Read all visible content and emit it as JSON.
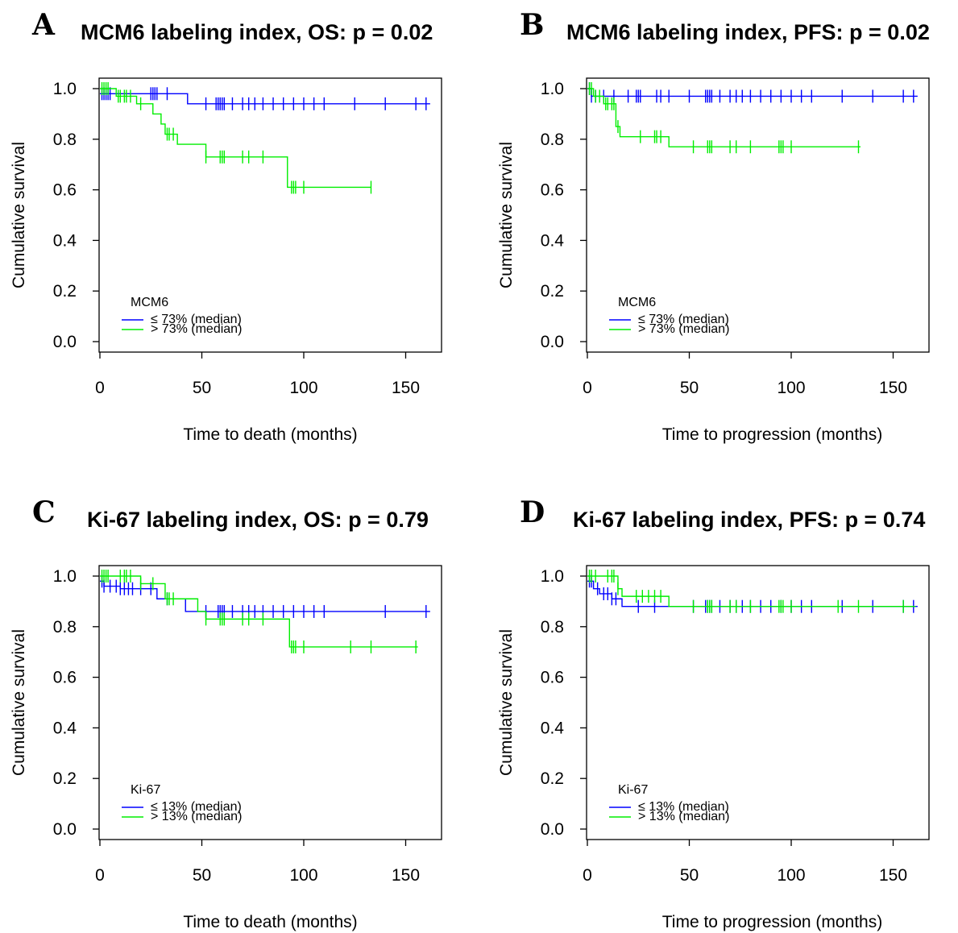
{
  "chart_data": [
    {
      "type": "line",
      "panel_letter": "A",
      "title": "MCM6 labeling index, OS: p = 0.02",
      "xlabel": "Time to death (months)",
      "ylabel": "Cumulative survival",
      "xlim": [
        0,
        165
      ],
      "ylim": [
        0,
        1.0
      ],
      "xticks": [
        "0",
        "50",
        "100",
        "150"
      ],
      "yticks": [
        "0.0",
        "0.2",
        "0.4",
        "0.6",
        "0.8",
        "1.0"
      ],
      "legend": {
        "title": "MCM6",
        "position": "bottom-left",
        "entries": [
          "≤ 73% (median)",
          "> 73% (median)"
        ]
      },
      "series": [
        {
          "name": "≤ 73% (median)",
          "color": "#0000ff",
          "steps": [
            [
              0,
              0.98
            ],
            [
              43,
              0.94
            ],
            [
              162,
              0.94
            ]
          ],
          "censor": [
            1,
            2,
            3,
            4,
            5,
            25,
            26,
            27,
            28,
            33,
            52,
            57,
            58,
            59,
            60,
            61,
            65,
            70,
            73,
            76,
            80,
            85,
            90,
            95,
            100,
            105,
            110,
            125,
            140,
            155,
            160
          ]
        },
        {
          "name": "> 73% (median)",
          "color": "#00ee00",
          "steps": [
            [
              0,
              1.0
            ],
            [
              8,
              0.97
            ],
            [
              18,
              0.94
            ],
            [
              26,
              0.9
            ],
            [
              30,
              0.86
            ],
            [
              32,
              0.82
            ],
            [
              38,
              0.78
            ],
            [
              52,
              0.73
            ],
            [
              92,
              0.61
            ],
            [
              133,
              0.61
            ]
          ],
          "censor": [
            1,
            2,
            3,
            4,
            9,
            10,
            12,
            13,
            15,
            20,
            33,
            34,
            36,
            52,
            59,
            60,
            61,
            70,
            73,
            80,
            94,
            95,
            96,
            100,
            133
          ]
        }
      ]
    },
    {
      "type": "line",
      "panel_letter": "B",
      "title": "MCM6 labeling index, PFS: p = 0.02",
      "xlabel": "Time to progression (months)",
      "ylabel": "Cumulative survival",
      "xlim": [
        0,
        165
      ],
      "ylim": [
        0,
        1.0
      ],
      "xticks": [
        "0",
        "50",
        "100",
        "150"
      ],
      "yticks": [
        "0.0",
        "0.2",
        "0.4",
        "0.6",
        "0.8",
        "1.0"
      ],
      "legend": {
        "title": "MCM6",
        "position": "bottom-left",
        "entries": [
          "≤ 73% (median)",
          "> 73% (median)"
        ]
      },
      "series": [
        {
          "name": "≤ 73% (median)",
          "color": "#0000ff",
          "steps": [
            [
              0,
              1.0
            ],
            [
              2,
              0.97
            ],
            [
              162,
              0.97
            ]
          ],
          "censor": [
            1,
            2,
            4,
            8,
            13,
            20,
            24,
            25,
            26,
            34,
            36,
            40,
            50,
            58,
            59,
            60,
            61,
            65,
            70,
            73,
            76,
            80,
            85,
            90,
            95,
            100,
            105,
            110,
            125,
            140,
            155,
            160
          ]
        },
        {
          "name": "> 73% (median)",
          "color": "#00ee00",
          "steps": [
            [
              0,
              1.0
            ],
            [
              3,
              0.97
            ],
            [
              8,
              0.94
            ],
            [
              14,
              0.85
            ],
            [
              16,
              0.81
            ],
            [
              40,
              0.77
            ],
            [
              134,
              0.77
            ]
          ],
          "censor": [
            1,
            2,
            4,
            6,
            9,
            10,
            12,
            13,
            15,
            26,
            33,
            34,
            36,
            52,
            59,
            60,
            61,
            70,
            73,
            80,
            94,
            95,
            96,
            100,
            133
          ]
        }
      ]
    },
    {
      "type": "line",
      "panel_letter": "C",
      "title": "Ki-67 labeling index, OS: p = 0.79",
      "xlabel": "Time to death (months)",
      "ylabel": "Cumulative survival",
      "xlim": [
        0,
        165
      ],
      "ylim": [
        0,
        1.0
      ],
      "xticks": [
        "0",
        "50",
        "100",
        "150"
      ],
      "yticks": [
        "0.0",
        "0.2",
        "0.4",
        "0.6",
        "0.8",
        "1.0"
      ],
      "legend": {
        "title": "Ki-67",
        "position": "bottom-left",
        "entries": [
          "≤ 13% (median)",
          "> 13% (median)"
        ]
      },
      "series": [
        {
          "name": "≤ 13% (median)",
          "color": "#0000ff",
          "steps": [
            [
              0,
              0.98
            ],
            [
              2,
              0.96
            ],
            [
              10,
              0.95
            ],
            [
              28,
              0.91
            ],
            [
              42,
              0.86
            ],
            [
              162,
              0.86
            ]
          ],
          "censor": [
            1,
            2,
            5,
            8,
            10,
            12,
            14,
            16,
            20,
            25,
            33,
            52,
            58,
            59,
            60,
            61,
            65,
            70,
            73,
            76,
            80,
            85,
            90,
            95,
            100,
            105,
            110,
            140,
            160
          ]
        },
        {
          "name": "> 13% (median)",
          "color": "#00ee00",
          "steps": [
            [
              0,
              1.0
            ],
            [
              20,
              0.97
            ],
            [
              32,
              0.91
            ],
            [
              48,
              0.86
            ],
            [
              52,
              0.83
            ],
            [
              93,
              0.72
            ],
            [
              156,
              0.72
            ]
          ],
          "censor": [
            1,
            2,
            3,
            4,
            10,
            12,
            13,
            15,
            20,
            26,
            33,
            34,
            36,
            52,
            59,
            60,
            61,
            70,
            73,
            80,
            94,
            95,
            96,
            100,
            123,
            133,
            155
          ]
        }
      ]
    },
    {
      "type": "line",
      "panel_letter": "D",
      "title": "Ki-67 labeling index, PFS: p = 0.74",
      "xlabel": "Time to progression (months)",
      "ylabel": "Cumulative survival",
      "xlim": [
        0,
        165
      ],
      "ylim": [
        0,
        1.0
      ],
      "xticks": [
        "0",
        "50",
        "100",
        "150"
      ],
      "yticks": [
        "0.0",
        "0.2",
        "0.4",
        "0.6",
        "0.8",
        "1.0"
      ],
      "legend": {
        "title": "Ki-67",
        "position": "bottom-left",
        "entries": [
          "≤ 13% (median)",
          "> 13% (median)"
        ]
      },
      "series": [
        {
          "name": "≤ 13% (median)",
          "color": "#0000ff",
          "steps": [
            [
              0,
              0.98
            ],
            [
              3,
              0.95
            ],
            [
              6,
              0.93
            ],
            [
              12,
              0.91
            ],
            [
              17,
              0.88
            ],
            [
              162,
              0.88
            ]
          ],
          "censor": [
            1,
            2,
            5,
            8,
            10,
            12,
            14,
            25,
            33,
            52,
            58,
            59,
            60,
            61,
            65,
            70,
            73,
            76,
            80,
            85,
            90,
            95,
            100,
            105,
            110,
            125,
            140,
            155,
            160
          ]
        },
        {
          "name": "> 13% (median)",
          "color": "#00ee00",
          "steps": [
            [
              0,
              1.0
            ],
            [
              15,
              0.95
            ],
            [
              17,
              0.92
            ],
            [
              40,
              0.88
            ],
            [
              161,
              0.88
            ]
          ],
          "censor": [
            1,
            2,
            4,
            10,
            12,
            13,
            15,
            24,
            27,
            30,
            33,
            36,
            52,
            59,
            60,
            61,
            70,
            73,
            80,
            94,
            95,
            96,
            100,
            123,
            133,
            155
          ]
        }
      ]
    }
  ]
}
